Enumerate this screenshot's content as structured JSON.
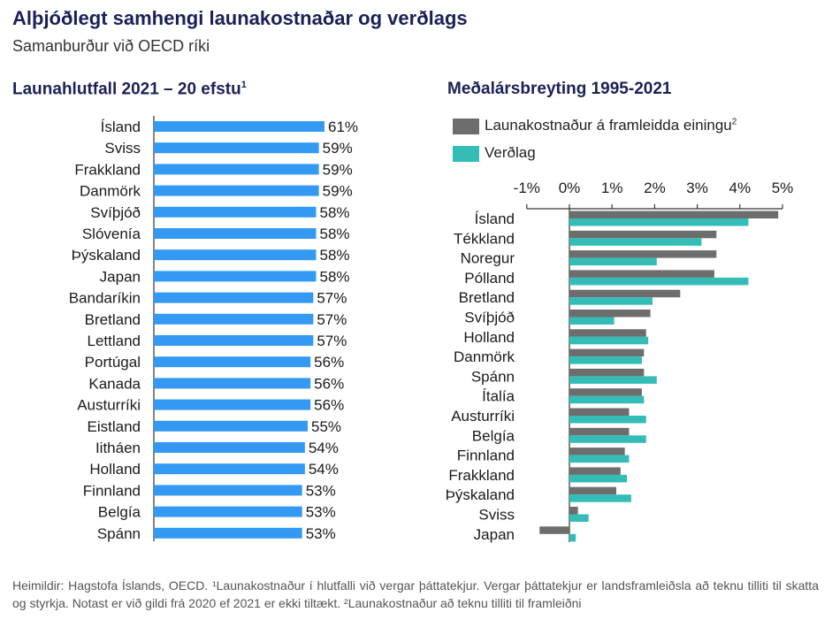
{
  "header": {
    "title": "Alþjóðlegt samhengi launakostnaðar og verðlags",
    "subtitle": "Samanburður við OECD ríki"
  },
  "colors": {
    "blue": "#3399f3",
    "gray": "#6d6d6d",
    "teal": "#33bdb6",
    "axis": "#333333"
  },
  "chart_data": [
    {
      "type": "bar",
      "orientation": "horizontal",
      "title": "Launahlutfall 2021 – 20 efstu",
      "title_note": "1",
      "categories": [
        "Ísland",
        "Sviss",
        "Frakkland",
        "Danmörk",
        "Svíþjóð",
        "Slóvenía",
        "Þýskaland",
        "Japan",
        "Bandaríkin",
        "Bretland",
        "Lettland",
        "Portúgal",
        "Kanada",
        "Austurríki",
        "Eistland",
        "Iitháen",
        "Holland",
        "Finnland",
        "Belgía",
        "Spánn"
      ],
      "values": [
        61,
        59,
        59,
        59,
        58,
        58,
        58,
        58,
        57,
        57,
        57,
        56,
        56,
        56,
        55,
        54,
        54,
        53,
        53,
        53
      ],
      "labels": [
        "61%",
        "59%",
        "59%",
        "59%",
        "58%",
        "58%",
        "58%",
        "58%",
        "57%",
        "57%",
        "57%",
        "56%",
        "56%",
        "56%",
        "55%",
        "54%",
        "54%",
        "53%",
        "53%",
        "53%"
      ],
      "xlim": [
        0,
        61
      ],
      "color": "#3399f3"
    },
    {
      "type": "bar",
      "orientation": "horizontal",
      "title": "Meðalársbreyting 1995-2021",
      "categories": [
        "Ísland",
        "Tékkland",
        "Noregur",
        "Pólland",
        "Bretland",
        "Svíþjóð",
        "Holland",
        "Danmörk",
        "Spánn",
        "Ítalía",
        "Austurríki",
        "Belgía",
        "Finnland",
        "Frakkland",
        "Þýskaland",
        "Sviss",
        "Japan"
      ],
      "series": [
        {
          "name": "Launakostnaður á framleidda einingu",
          "name_note": "2",
          "color": "#6d6d6d",
          "values": [
            4.9,
            3.45,
            3.45,
            3.4,
            2.6,
            1.9,
            1.8,
            1.75,
            1.75,
            1.7,
            1.4,
            1.4,
            1.3,
            1.2,
            1.1,
            0.2,
            -0.7
          ]
        },
        {
          "name": "Verðlag",
          "color": "#33bdb6",
          "values": [
            4.2,
            3.1,
            2.05,
            4.2,
            1.95,
            1.05,
            1.85,
            1.7,
            2.05,
            1.75,
            1.8,
            1.8,
            1.4,
            1.35,
            1.45,
            0.45,
            0.15
          ]
        }
      ],
      "ticks": [
        -1,
        0,
        1,
        2,
        3,
        4,
        5
      ],
      "tick_labels": [
        "-1%",
        "0%",
        "1%",
        "2%",
        "3%",
        "4%",
        "5%"
      ],
      "xlim": [
        -1,
        5
      ],
      "legend": "top-left"
    }
  ],
  "footnote": "Heimildir: Hagstofa Íslands, OECD. ¹Launakostnaður í hlutfalli við vergar þáttatekjur. Vergar þáttatekjur er landsframleiðsla að teknu tilliti til skatta og styrkja. Notast er við gildi frá 2020 ef 2021 er ekki tiltækt. ²Launakostnaður að teknu tilliti til framleiðni"
}
